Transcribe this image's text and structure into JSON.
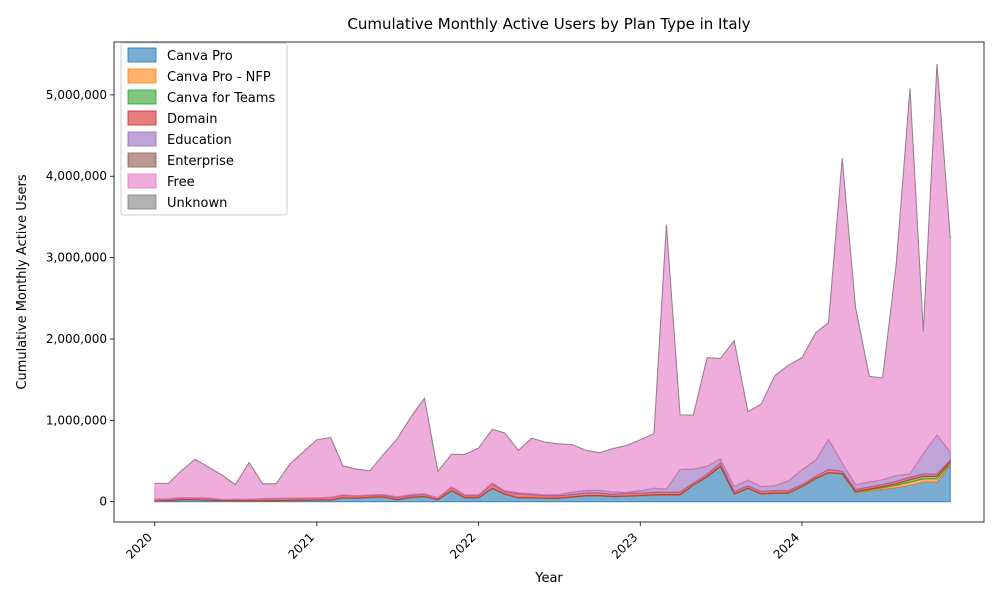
{
  "chart_data": {
    "type": "area",
    "title": "Cumulative Monthly Active Users by Plan Type in Italy",
    "xlabel": "Year",
    "ylabel": "Cumulative Monthly Active Users",
    "stacked": true,
    "xlim": [
      "2019-10-01",
      "2025-02-15"
    ],
    "ylim": [
      -250000,
      5650000
    ],
    "x_ticks": [
      "2020",
      "2021",
      "2022",
      "2023",
      "2024"
    ],
    "y_ticks": [
      "0",
      "1,000,000",
      "2,000,000",
      "3,000,000",
      "4,000,000",
      "5,000,000"
    ],
    "y_tick_values": [
      0,
      1000000,
      2000000,
      3000000,
      4000000,
      5000000
    ],
    "legend_position": "upper left",
    "grid": false,
    "x": [
      "2020-01",
      "2020-02",
      "2020-03",
      "2020-04",
      "2020-05",
      "2020-06",
      "2020-07",
      "2020-08",
      "2020-09",
      "2020-10",
      "2020-11",
      "2020-12",
      "2021-01",
      "2021-02",
      "2021-03",
      "2021-04",
      "2021-05",
      "2021-06",
      "2021-07",
      "2021-08",
      "2021-09",
      "2021-10",
      "2021-11",
      "2021-12",
      "2022-01",
      "2022-02",
      "2022-03",
      "2022-04",
      "2022-05",
      "2022-06",
      "2022-07",
      "2022-08",
      "2022-09",
      "2022-10",
      "2022-11",
      "2022-12",
      "2023-01",
      "2023-02",
      "2023-03",
      "2023-04",
      "2023-05",
      "2023-06",
      "2023-07",
      "2023-08",
      "2023-09",
      "2023-10",
      "2023-11",
      "2023-12",
      "2024-01",
      "2024-02",
      "2024-03",
      "2024-04",
      "2024-05",
      "2024-06",
      "2024-07",
      "2024-08",
      "2024-09",
      "2024-10",
      "2024-11",
      "2024-12"
    ],
    "series": [
      {
        "name": "Canva Pro",
        "color": "#1f77b4",
        "values": [
          5000,
          10000,
          20000,
          20000,
          15000,
          12000,
          8000,
          8000,
          8000,
          10000,
          12000,
          14000,
          18000,
          18000,
          45000,
          40000,
          50000,
          55000,
          20000,
          50000,
          60000,
          20000,
          130000,
          45000,
          45000,
          160000,
          90000,
          45000,
          45000,
          40000,
          40000,
          55000,
          70000,
          70000,
          60000,
          65000,
          70000,
          80000,
          80000,
          80000,
          200000,
          300000,
          430000,
          90000,
          160000,
          90000,
          100000,
          100000,
          180000,
          280000,
          350000,
          340000,
          110000,
          130000,
          150000,
          170000,
          200000,
          240000,
          240000,
          450000
        ]
      },
      {
        "name": "Canva Pro - NFP",
        "color": "#ff7f0e",
        "values": [
          3000,
          3000,
          3000,
          3000,
          3000,
          3000,
          3000,
          3000,
          3000,
          3000,
          3000,
          3000,
          3000,
          3000,
          3000,
          3000,
          3000,
          3000,
          3000,
          3000,
          3000,
          3000,
          3000,
          3000,
          3000,
          3000,
          3000,
          3000,
          3000,
          3000,
          3000,
          3000,
          3000,
          3000,
          3000,
          3000,
          5000,
          5000,
          5000,
          5000,
          5000,
          5000,
          5000,
          5000,
          5000,
          5000,
          5000,
          5000,
          5000,
          5000,
          5000,
          5000,
          10000,
          15000,
          20000,
          30000,
          40000,
          40000,
          40000,
          20000
        ]
      },
      {
        "name": "Canva for Teams",
        "color": "#2ca02c",
        "values": [
          0,
          0,
          0,
          0,
          0,
          0,
          0,
          0,
          0,
          0,
          0,
          0,
          0,
          0,
          0,
          0,
          0,
          0,
          0,
          0,
          0,
          0,
          0,
          0,
          0,
          0,
          0,
          0,
          0,
          0,
          0,
          0,
          0,
          0,
          0,
          0,
          0,
          0,
          0,
          0,
          0,
          0,
          0,
          0,
          0,
          0,
          0,
          0,
          0,
          0,
          0,
          0,
          5000,
          10000,
          15000,
          20000,
          30000,
          30000,
          30000,
          20000
        ]
      },
      {
        "name": "Domain",
        "color": "#d62728",
        "values": [
          20000,
          20000,
          25000,
          25000,
          25000,
          10000,
          15000,
          15000,
          25000,
          25000,
          25000,
          25000,
          25000,
          30000,
          30000,
          25000,
          25000,
          25000,
          25000,
          25000,
          25000,
          20000,
          40000,
          25000,
          25000,
          55000,
          30000,
          50000,
          40000,
          30000,
          30000,
          30000,
          35000,
          35000,
          25000,
          35000,
          30000,
          30000,
          30000,
          30000,
          25000,
          30000,
          40000,
          30000,
          30000,
          30000,
          30000,
          30000,
          25000,
          25000,
          40000,
          30000,
          25000,
          25000,
          25000,
          30000,
          30000,
          30000,
          30000,
          20000
        ]
      },
      {
        "name": "Education",
        "color": "#9467bd",
        "values": [
          2000,
          2000,
          3000,
          3000,
          2000,
          2000,
          2000,
          2000,
          3000,
          3000,
          3000,
          3000,
          3000,
          3000,
          5000,
          5000,
          5000,
          5000,
          10000,
          10000,
          10000,
          5000,
          10000,
          10000,
          10000,
          10000,
          10000,
          10000,
          10000,
          10000,
          15000,
          30000,
          30000,
          30000,
          30000,
          10000,
          30000,
          50000,
          40000,
          280000,
          170000,
          100000,
          50000,
          60000,
          70000,
          60000,
          60000,
          120000,
          180000,
          200000,
          370000,
          100000,
          60000,
          60000,
          60000,
          70000,
          40000,
          250000,
          480000,
          100000
        ]
      },
      {
        "name": "Enterprise",
        "color": "#8c564b",
        "values": [
          0,
          0,
          0,
          0,
          0,
          0,
          0,
          0,
          0,
          0,
          0,
          0,
          0,
          0,
          0,
          0,
          0,
          0,
          0,
          0,
          0,
          0,
          0,
          0,
          0,
          0,
          0,
          0,
          0,
          0,
          0,
          0,
          0,
          0,
          0,
          0,
          0,
          0,
          0,
          0,
          0,
          0,
          0,
          0,
          0,
          0,
          0,
          0,
          0,
          0,
          0,
          0,
          0,
          0,
          0,
          0,
          0,
          0,
          0,
          0
        ]
      },
      {
        "name": "Free",
        "color": "#e377c2",
        "values": [
          195000,
          190000,
          329000,
          469000,
          380000,
          300000,
          182000,
          452000,
          181000,
          179000,
          420000,
          565000,
          711000,
          736000,
          357000,
          327000,
          297000,
          497000,
          712000,
          950000,
          1172000,
          322000,
          400000,
          497000,
          577000,
          662000,
          712000,
          522000,
          682000,
          647000,
          622000,
          582000,
          492000,
          462000,
          535000,
          577000,
          625000,
          670000,
          3250000,
          670000,
          665000,
          1335000,
          1235000,
          1795000,
          840000,
          1015000,
          1355000,
          1420000,
          1380000,
          1565000,
          1435000,
          3745000,
          2180000,
          1300000,
          1250000,
          2610000,
          4740000,
          1500000,
          4560000,
          2620000
        ]
      },
      {
        "name": "Unknown",
        "color": "#7f7f7f",
        "values": [
          0,
          0,
          0,
          0,
          0,
          0,
          0,
          0,
          0,
          0,
          0,
          0,
          0,
          0,
          0,
          0,
          0,
          0,
          0,
          0,
          0,
          0,
          0,
          0,
          0,
          0,
          0,
          0,
          0,
          0,
          0,
          0,
          0,
          0,
          0,
          0,
          0,
          0,
          0,
          0,
          0,
          0,
          0,
          0,
          0,
          0,
          0,
          0,
          0,
          0,
          0,
          0,
          0,
          0,
          0,
          0,
          0,
          0,
          0,
          0
        ]
      }
    ]
  }
}
